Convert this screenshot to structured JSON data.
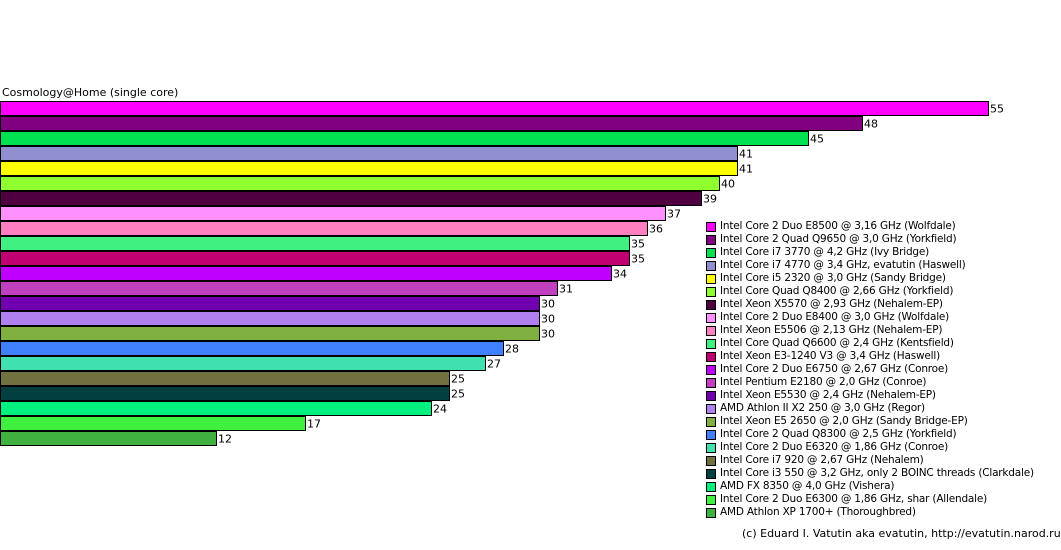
{
  "chart_data": {
    "type": "bar",
    "orientation": "horizontal",
    "title": "Cosmology@Home (single core)",
    "xlim": [
      0,
      55
    ],
    "grid": false,
    "legend_position": "right",
    "credit": "(c) Eduard I. Vatutin aka evatutin, http://evatutin.narod.ru",
    "series": [
      {
        "name": "Intel Core 2 Duo E8500 @ 3,16 GHz (Wolfdale)",
        "value": 55,
        "color": "#ff00ff"
      },
      {
        "name": "Intel Core 2 Quad Q9650 @ 3,0 GHz (Yorkfield)",
        "value": 48,
        "color": "#800080"
      },
      {
        "name": "Intel Core i7 3770 @ 4,2 GHz (Ivy Bridge)",
        "value": 45,
        "color": "#00e050"
      },
      {
        "name": "Intel Core i7 4770 @ 3,4 GHz, evatutin (Haswell)",
        "value": 41,
        "color": "#9090d0"
      },
      {
        "name": "Intel Core i5 2320 @ 3,0 GHz (Sandy Bridge)",
        "value": 41,
        "color": "#ffff00"
      },
      {
        "name": "Intel Core Quad Q8400 @ 2,66 GHz (Yorkfield)",
        "value": 40,
        "color": "#90ff30"
      },
      {
        "name": "Intel Xeon X5570 @ 2,93 GHz (Nehalem-EP)",
        "value": 39,
        "color": "#500040"
      },
      {
        "name": "Intel Core 2 Duo E8400 @ 3,0 GHz (Wolfdale)",
        "value": 37,
        "color": "#ff90ff"
      },
      {
        "name": "Intel Xeon E5506 @ 2,13 GHz (Nehalem-EP)",
        "value": 36,
        "color": "#ff80c0"
      },
      {
        "name": "Intel Core Quad Q6600 @ 2,4 GHz (Kentsfield)",
        "value": 35,
        "color": "#40f080"
      },
      {
        "name": "Intel Xeon E3-1240 V3 @ 3,4 GHz (Haswell)",
        "value": 35,
        "color": "#c00070"
      },
      {
        "name": "Intel Core 2 Duo E6750 @ 2,67 GHz (Conroe)",
        "value": 34,
        "color": "#c000ff"
      },
      {
        "name": "Intel Pentium E2180 @ 2,0 GHz (Conroe)",
        "value": 31,
        "color": "#c040c0"
      },
      {
        "name": "Intel Xeon E5530 @ 2,4 GHz (Nehalem-EP)",
        "value": 30,
        "color": "#7000b0"
      },
      {
        "name": "AMD Athlon II X2 250 @ 3,0 GHz (Regor)",
        "value": 30,
        "color": "#b080f0"
      },
      {
        "name": "Intel Xeon E5 2650 @ 2,0 GHz (Sandy Bridge-EP)",
        "value": 30,
        "color": "#80b040"
      },
      {
        "name": "Intel Core 2 Quad Q8300 @ 2,5 GHz (Yorkfield)",
        "value": 28,
        "color": "#4080ff"
      },
      {
        "name": "Intel Core 2 Duo E6320 @ 1,86 GHz (Conroe)",
        "value": 27,
        "color": "#40e0b0"
      },
      {
        "name": "Intel Core i7 920 @ 2,67 GHz (Nehalem)",
        "value": 25,
        "color": "#707040"
      },
      {
        "name": "Intel Core i3 550 @ 3,2 GHz, only 2 BOINC threads (Clarkdale)",
        "value": 25,
        "color": "#004040"
      },
      {
        "name": "AMD FX 8350 @ 4,0 GHz (Vishera)",
        "value": 24,
        "color": "#00f080"
      },
      {
        "name": "Intel Core 2 Duo E6300 @ 1,86 GHz, shar (Allendale)",
        "value": 17,
        "color": "#40f040"
      },
      {
        "name": "AMD Athlon XP 1700+ (Thoroughbred)",
        "value": 12,
        "color": "#40b040"
      }
    ]
  }
}
